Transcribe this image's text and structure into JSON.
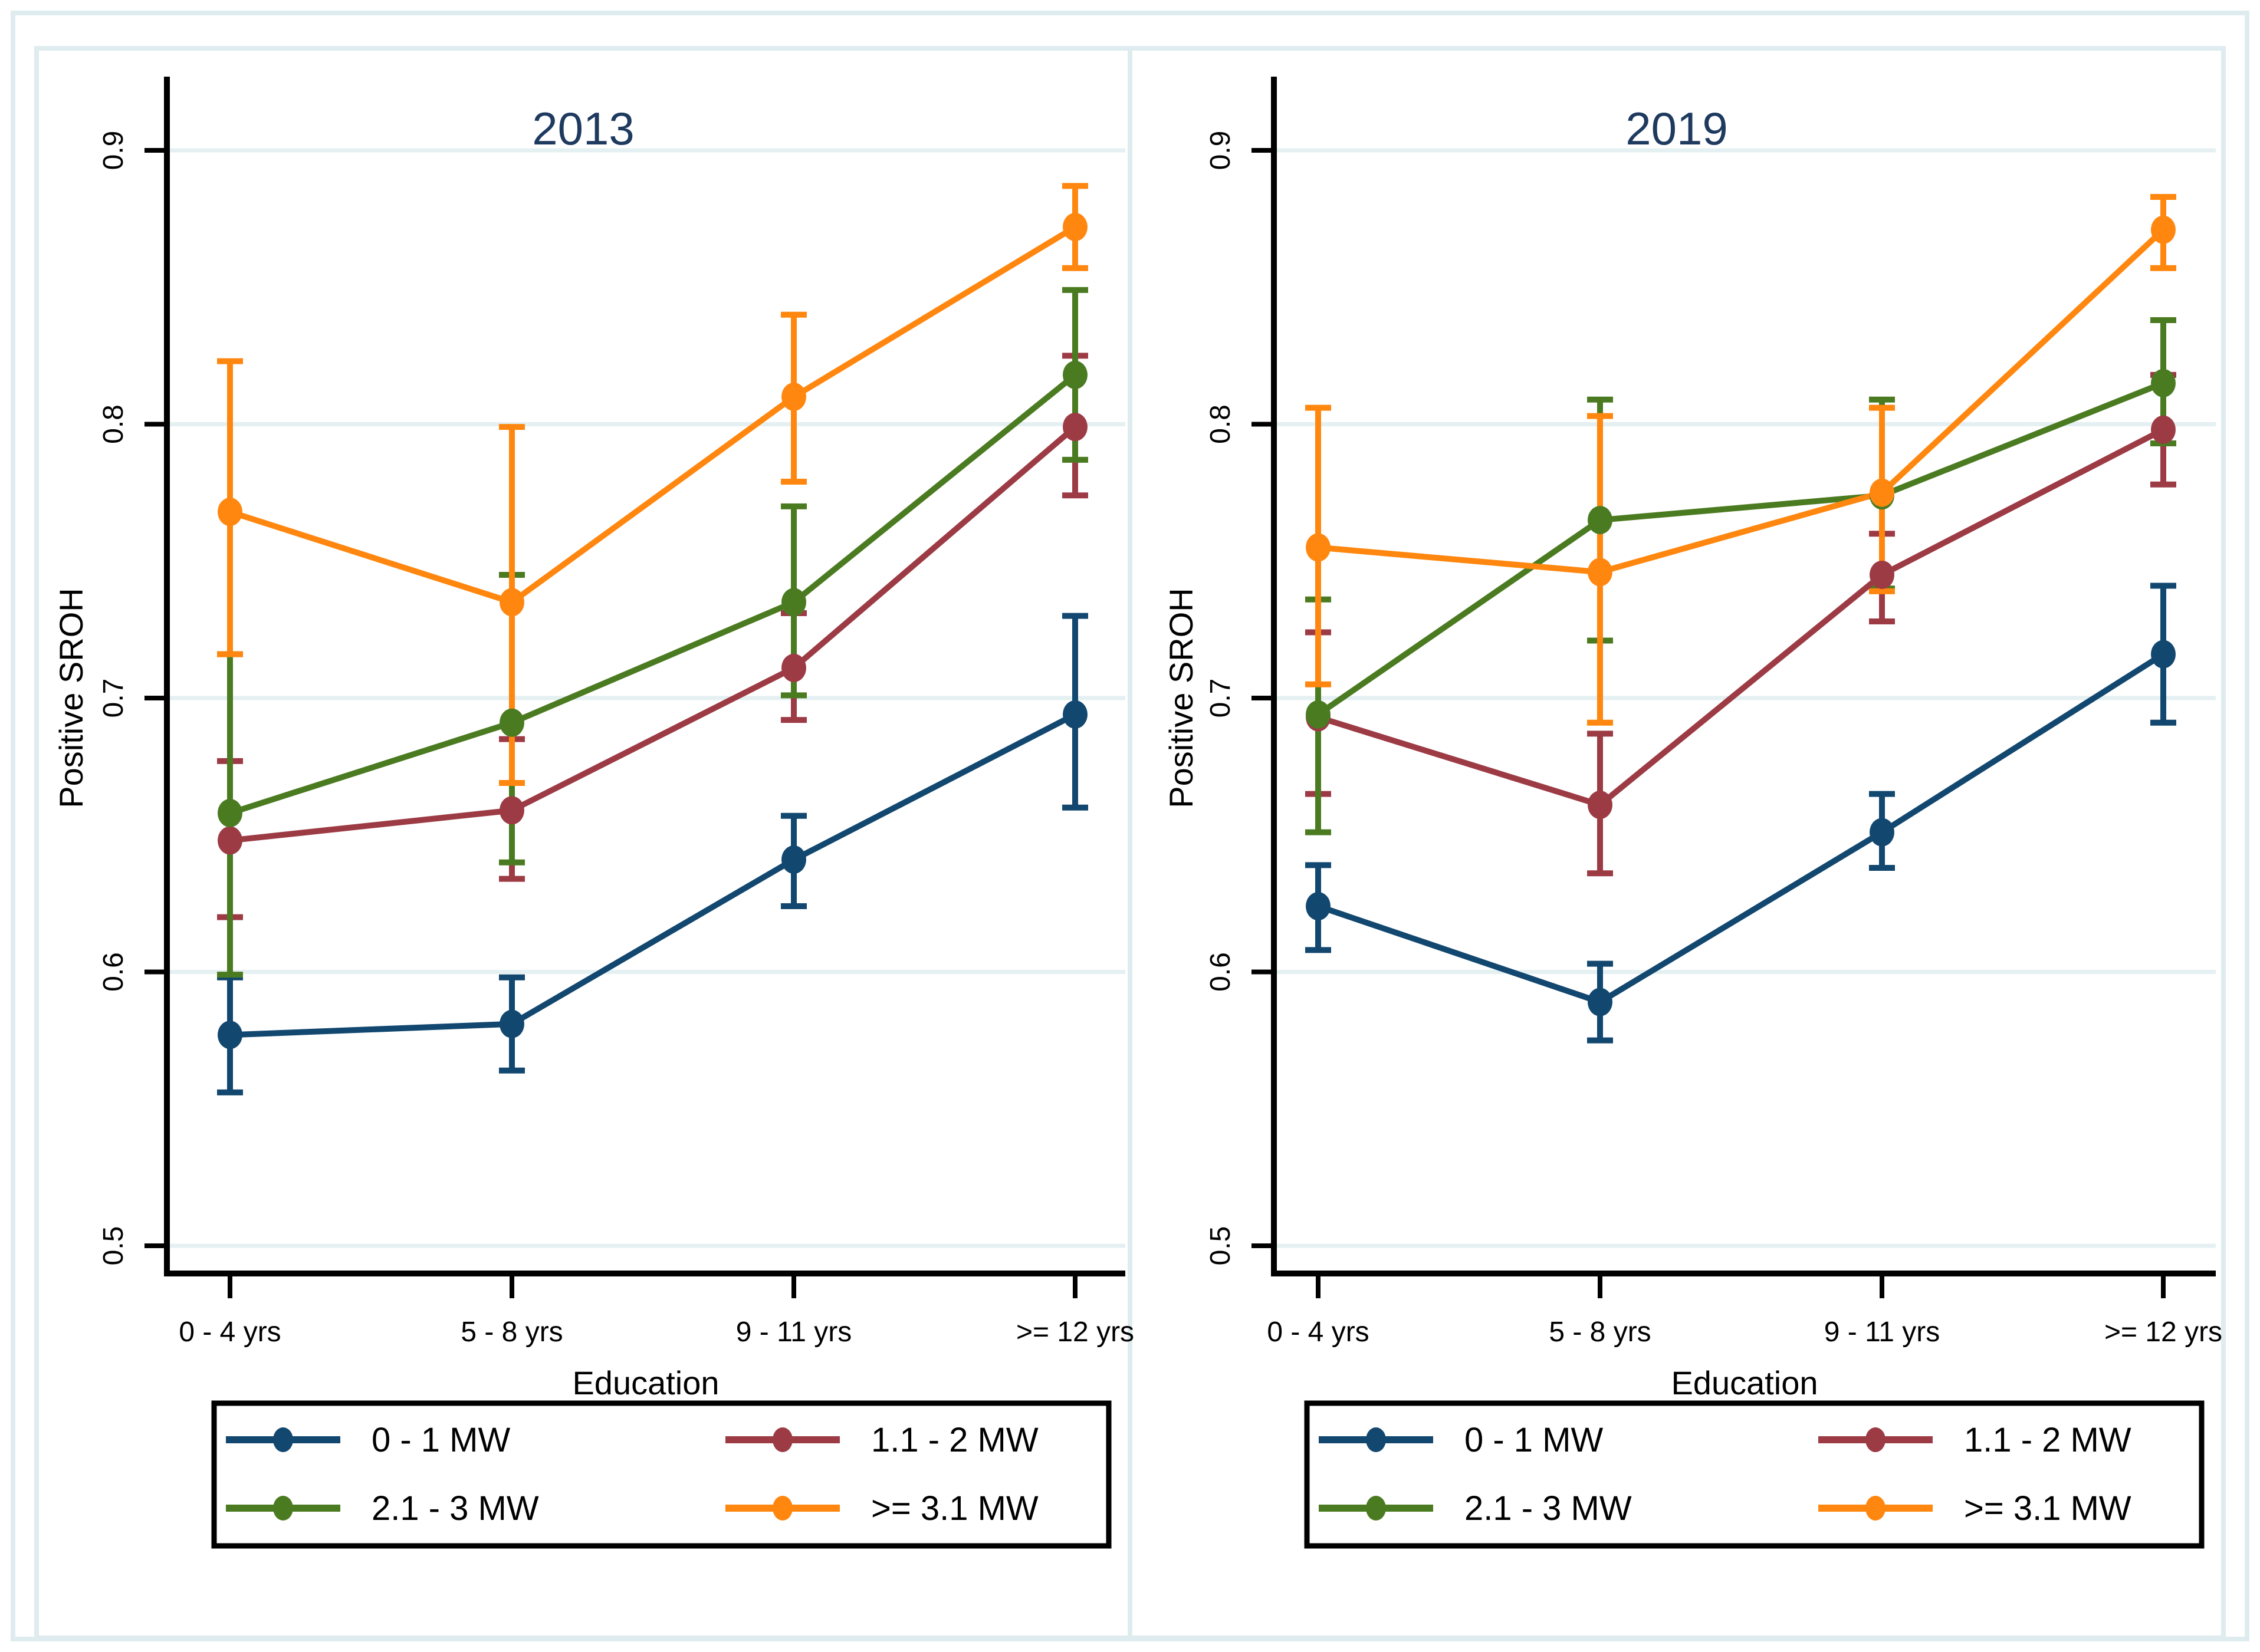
{
  "figure": {
    "background": "#ffffff",
    "frame_color": "#dfecef",
    "grid_color": "#e4f0f2",
    "axis_color": "#000000",
    "title_color": "#1e3a5f",
    "legend_border_color": "#000000"
  },
  "axes": {
    "x_title": "Education",
    "y_title": "Positive SROH",
    "x_categories": [
      "0 - 4 yrs",
      "5 - 8 yrs",
      "9 - 11 yrs",
      ">= 12 yrs"
    ],
    "y_ticks": [
      0.5,
      0.6,
      0.7,
      0.8,
      0.9
    ],
    "y_tick_labels": [
      "0.5",
      "0.6",
      "0.7",
      "0.8",
      "0.9"
    ],
    "ylim": [
      0.5,
      0.9
    ]
  },
  "chart_data": [
    {
      "type": "line",
      "title": "2013",
      "xlabel": "Education",
      "ylabel": "Positive SROH",
      "categories": [
        "0 - 4 yrs",
        "5 - 8 yrs",
        "9 - 11 yrs",
        ">= 12 yrs"
      ],
      "ylim": [
        0.5,
        0.9
      ],
      "grid": true,
      "error_bars": true,
      "legend_position": "bottom",
      "series": [
        {
          "name": "0 - 1 MW",
          "color": "#12476f",
          "values": [
            0.577,
            0.581,
            0.641,
            0.694
          ],
          "ci_low": [
            0.556,
            0.564,
            0.624,
            0.66
          ],
          "ci_high": [
            0.598,
            0.598,
            0.657,
            0.73
          ]
        },
        {
          "name": "1.1 - 2 MW",
          "color": "#9d3b45",
          "values": [
            0.648,
            0.659,
            0.711,
            0.799
          ],
          "ci_low": [
            0.62,
            0.634,
            0.692,
            0.774
          ],
          "ci_high": [
            0.677,
            0.685,
            0.731,
            0.825
          ]
        },
        {
          "name": "2.1 - 3 MW",
          "color": "#4b7b21",
          "values": [
            0.658,
            0.691,
            0.735,
            0.818
          ],
          "ci_low": [
            0.599,
            0.64,
            0.701,
            0.787
          ],
          "ci_high": [
            0.716,
            0.745,
            0.77,
            0.849
          ]
        },
        {
          "name": ">= 3.1 MW",
          "color": "#ff870f",
          "values": [
            0.768,
            0.735,
            0.81,
            0.872
          ],
          "ci_low": [
            0.716,
            0.669,
            0.779,
            0.857
          ],
          "ci_high": [
            0.823,
            0.799,
            0.84,
            0.887
          ]
        }
      ]
    },
    {
      "type": "line",
      "title": "2019",
      "xlabel": "Education",
      "ylabel": "Positive SROH",
      "categories": [
        "0 - 4 yrs",
        "5 - 8 yrs",
        "9 - 11 yrs",
        ">= 12 yrs"
      ],
      "ylim": [
        0.5,
        0.9
      ],
      "grid": true,
      "error_bars": true,
      "legend_position": "bottom",
      "series": [
        {
          "name": "0 - 1 MW",
          "color": "#12476f",
          "values": [
            0.624,
            0.589,
            0.651,
            0.716
          ],
          "ci_low": [
            0.608,
            0.575,
            0.638,
            0.691
          ],
          "ci_high": [
            0.639,
            0.603,
            0.665,
            0.741
          ]
        },
        {
          "name": "1.1 - 2 MW",
          "color": "#9d3b45",
          "values": [
            0.693,
            0.661,
            0.745,
            0.798
          ],
          "ci_low": [
            0.665,
            0.636,
            0.728,
            0.778
          ],
          "ci_high": [
            0.724,
            0.687,
            0.76,
            0.818
          ]
        },
        {
          "name": "2.1 - 3 MW",
          "color": "#4b7b21",
          "values": [
            0.694,
            0.765,
            0.774,
            0.815
          ],
          "ci_low": [
            0.651,
            0.721,
            0.74,
            0.793
          ],
          "ci_high": [
            0.736,
            0.809,
            0.809,
            0.838
          ]
        },
        {
          "name": ">= 3.1 MW",
          "color": "#ff870f",
          "values": [
            0.755,
            0.746,
            0.775,
            0.871
          ],
          "ci_low": [
            0.705,
            0.691,
            0.739,
            0.857
          ],
          "ci_high": [
            0.806,
            0.803,
            0.806,
            0.883
          ]
        }
      ]
    }
  ]
}
